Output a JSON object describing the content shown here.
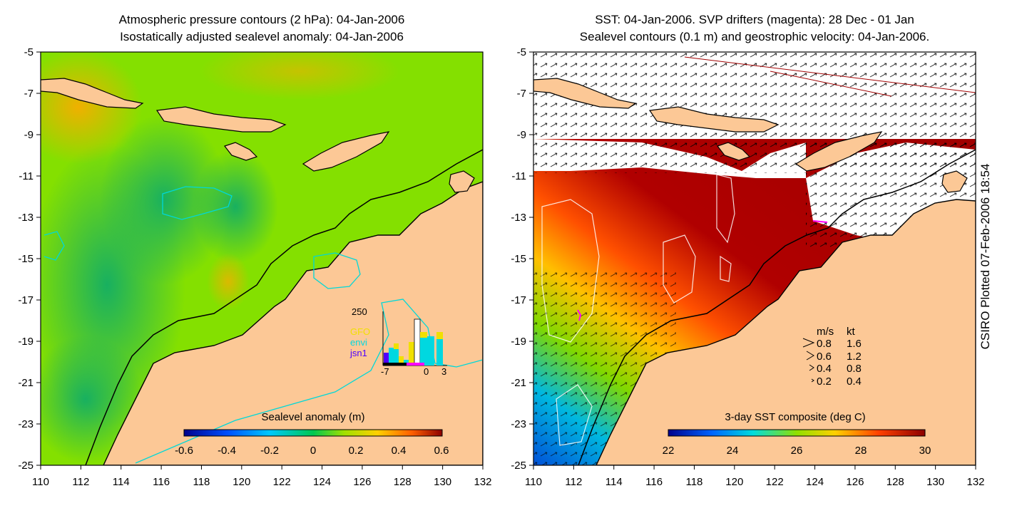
{
  "left_panel": {
    "title_line1": "Atmospheric pressure contours (2 hPa): 04-Jan-2006",
    "title_line2": "Isostatically adjusted sealevel anomaly: 04-Jan-2006",
    "colorbar_label": "Sealevel anomaly (m)",
    "colorbar_ticks": [
      "-0.6",
      "-0.4",
      "-0.2",
      "0",
      "0.2",
      "0.4",
      "0.6"
    ],
    "inset": {
      "ymax_label": "250",
      "legend": [
        "GFO",
        "envi",
        "jsn1"
      ],
      "xticks": [
        "-7",
        "0",
        "3"
      ],
      "legend_colors": [
        "#f0e000",
        "#00d8e0",
        "#5000ff"
      ]
    }
  },
  "right_panel": {
    "title_line1": "SST: 04-Jan-2006. SVP drifters (magenta): 28 Dec - 01 Jan",
    "title_line2": "Sealevel contours (0.1 m) and geostrophic velocity: 04-Jan-2006.",
    "colorbar_label": "3-day SST composite (deg C)",
    "colorbar_ticks": [
      "22",
      "24",
      "26",
      "28",
      "30"
    ],
    "velocity_legend": {
      "header_ms": "m/s",
      "header_kt": "kt",
      "rows": [
        {
          "ms": "0.8",
          "kt": "1.6"
        },
        {
          "ms": "0.6",
          "kt": "1.2"
        },
        {
          "ms": "0.4",
          "kt": "0.8"
        },
        {
          "ms": "0.2",
          "kt": "0.4"
        }
      ]
    }
  },
  "axes": {
    "x_ticks": [
      "110",
      "112",
      "114",
      "116",
      "118",
      "120",
      "122",
      "124",
      "126",
      "128",
      "130",
      "132"
    ],
    "y_ticks": [
      "-5",
      "-7",
      "-9",
      "-11",
      "-13",
      "-15",
      "-17",
      "-19",
      "-21",
      "-23",
      "-25"
    ],
    "lon_range": [
      110,
      132
    ],
    "lat_range": [
      -25,
      -5
    ]
  },
  "credit": "CSIRO Plotted 07-Feb-2006 18:54",
  "colors": {
    "land": "#fcc896",
    "sla_green": "#84e000",
    "sst_red": "#b00000",
    "contour_cyan": "#00d8d8",
    "drifter_magenta": "#ff00ff"
  }
}
